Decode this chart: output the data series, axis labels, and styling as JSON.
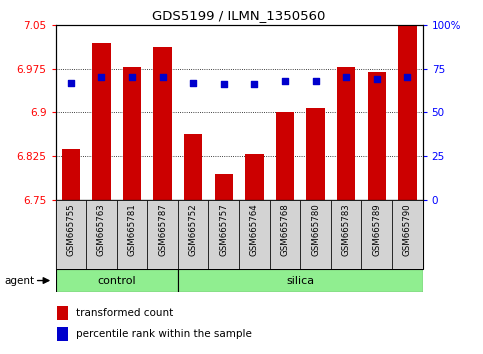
{
  "title": "GDS5199 / ILMN_1350560",
  "samples": [
    "GSM665755",
    "GSM665763",
    "GSM665781",
    "GSM665787",
    "GSM665752",
    "GSM665757",
    "GSM665764",
    "GSM665768",
    "GSM665780",
    "GSM665783",
    "GSM665789",
    "GSM665790"
  ],
  "bar_values": [
    6.838,
    7.018,
    6.978,
    7.012,
    6.863,
    6.795,
    6.828,
    6.9,
    6.908,
    6.978,
    6.97,
    7.05
  ],
  "percentile_values": [
    67,
    70,
    70,
    70,
    67,
    66,
    66,
    68,
    68,
    70,
    69,
    70
  ],
  "y_min": 6.75,
  "y_max": 7.05,
  "y_ticks": [
    6.75,
    6.825,
    6.9,
    6.975,
    7.05
  ],
  "y_tick_labels": [
    "6.75",
    "6.825",
    "6.9",
    "6.975",
    "7.05"
  ],
  "right_y_ticks": [
    0,
    25,
    50,
    75,
    100
  ],
  "right_y_labels": [
    "0",
    "25",
    "50",
    "75",
    "100%"
  ],
  "bar_color": "#cc0000",
  "dot_color": "#0000cc",
  "groups": [
    {
      "label": "control",
      "start": 0,
      "end": 3
    },
    {
      "label": "silica",
      "start": 4,
      "end": 11
    }
  ],
  "agent_label": "agent",
  "legend_items": [
    {
      "color": "#cc0000",
      "label": "transformed count"
    },
    {
      "color": "#0000cc",
      "label": "percentile rank within the sample"
    }
  ],
  "tick_label_bgcolor": "#d3d3d3",
  "bar_width": 0.6,
  "group_color": "#90ee90"
}
